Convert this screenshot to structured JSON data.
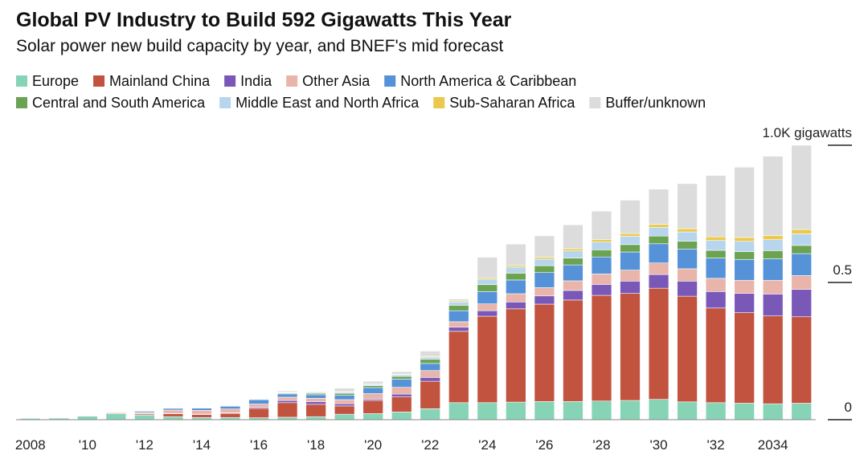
{
  "chart_data": {
    "type": "stacked_bar",
    "title": "Global PV Industry to Build 592 Gigawatts This Year",
    "subtitle": "Solar power new build capacity by year, and BNEF's mid forecast",
    "categories": [
      "2008",
      null,
      "'10",
      null,
      "'12",
      null,
      "'14",
      null,
      "'16",
      null,
      "'18",
      null,
      "'20",
      null,
      "'22",
      null,
      "'24",
      null,
      "'26",
      null,
      "'28",
      null,
      "'30",
      null,
      "'32",
      null,
      "2034",
      null
    ],
    "ylim": [
      0,
      1.0
    ],
    "yticks": [
      0,
      0.5,
      {
        "value": 1.0,
        "label": "1.0K gigawatts"
      }
    ],
    "series": [
      {
        "name": "Europe",
        "color": "#86d4b5",
        "values": [
          0.005,
          0.006,
          0.013,
          0.022,
          0.017,
          0.011,
          0.008,
          0.008,
          0.007,
          0.009,
          0.011,
          0.02,
          0.022,
          0.028,
          0.04,
          0.062,
          0.062,
          0.064,
          0.066,
          0.066,
          0.068,
          0.07,
          0.074,
          0.065,
          0.062,
          0.06,
          0.058,
          0.06
        ]
      },
      {
        "name": "Mainland China",
        "color": "#c2533f",
        "values": [
          0,
          0.001,
          0.001,
          0.003,
          0.004,
          0.011,
          0.011,
          0.015,
          0.034,
          0.053,
          0.045,
          0.03,
          0.048,
          0.055,
          0.1,
          0.26,
          0.315,
          0.34,
          0.355,
          0.37,
          0.385,
          0.39,
          0.405,
          0.385,
          0.345,
          0.33,
          0.32,
          0.315
        ]
      },
      {
        "name": "India",
        "color": "#7a58b8",
        "values": [
          0,
          0,
          0,
          0,
          0.001,
          0.001,
          0.001,
          0.002,
          0.004,
          0.008,
          0.01,
          0.008,
          0.005,
          0.01,
          0.014,
          0.015,
          0.02,
          0.025,
          0.03,
          0.035,
          0.04,
          0.045,
          0.05,
          0.055,
          0.06,
          0.07,
          0.08,
          0.1
        ]
      },
      {
        "name": "Other Asia",
        "color": "#e9b4aa",
        "values": [
          0,
          0,
          0.001,
          0.002,
          0.005,
          0.012,
          0.014,
          0.014,
          0.012,
          0.012,
          0.012,
          0.015,
          0.02,
          0.025,
          0.025,
          0.02,
          0.025,
          0.03,
          0.03,
          0.035,
          0.038,
          0.04,
          0.042,
          0.045,
          0.048,
          0.048,
          0.05,
          0.05
        ]
      },
      {
        "name": "North America & Caribbean",
        "color": "#5592d8",
        "values": [
          0.001,
          0.001,
          0.001,
          0.002,
          0.004,
          0.006,
          0.008,
          0.01,
          0.016,
          0.012,
          0.013,
          0.016,
          0.022,
          0.03,
          0.026,
          0.04,
          0.045,
          0.05,
          0.055,
          0.058,
          0.062,
          0.066,
          0.07,
          0.072,
          0.074,
          0.076,
          0.078,
          0.08
        ]
      },
      {
        "name": "Central and South America",
        "color": "#6ba352",
        "values": [
          0,
          0,
          0,
          0,
          0,
          0,
          0,
          0.001,
          0.002,
          0.003,
          0.005,
          0.007,
          0.007,
          0.01,
          0.015,
          0.02,
          0.025,
          0.025,
          0.025,
          0.025,
          0.026,
          0.027,
          0.028,
          0.028,
          0.028,
          0.028,
          0.03,
          0.03
        ]
      },
      {
        "name": "Middle East and North Africa",
        "color": "#b8d5ee",
        "values": [
          0,
          0,
          0,
          0,
          0,
          0,
          0.001,
          0.002,
          0.002,
          0.002,
          0.003,
          0.004,
          0.004,
          0.006,
          0.008,
          0.012,
          0.02,
          0.022,
          0.024,
          0.026,
          0.028,
          0.03,
          0.032,
          0.034,
          0.036,
          0.038,
          0.04,
          0.042
        ]
      },
      {
        "name": "Sub-Saharan Africa",
        "color": "#ebc94c",
        "values": [
          0,
          0,
          0,
          0,
          0,
          0,
          0,
          0.001,
          0.001,
          0.001,
          0.001,
          0.002,
          0.002,
          0.002,
          0.003,
          0.004,
          0.005,
          0.006,
          0.007,
          0.008,
          0.009,
          0.01,
          0.011,
          0.012,
          0.013,
          0.014,
          0.015,
          0.016
        ]
      },
      {
        "name": "Buffer/unknown",
        "color": "#dcdcdc",
        "values": [
          0.001,
          0,
          0.001,
          0.001,
          0,
          0,
          0.002,
          0.002,
          0.002,
          0.005,
          0.003,
          0.013,
          0.01,
          0.009,
          0.019,
          0.007,
          0.075,
          0.078,
          0.078,
          0.087,
          0.104,
          0.122,
          0.128,
          0.164,
          0.224,
          0.256,
          0.289,
          0.307
        ]
      }
    ]
  }
}
